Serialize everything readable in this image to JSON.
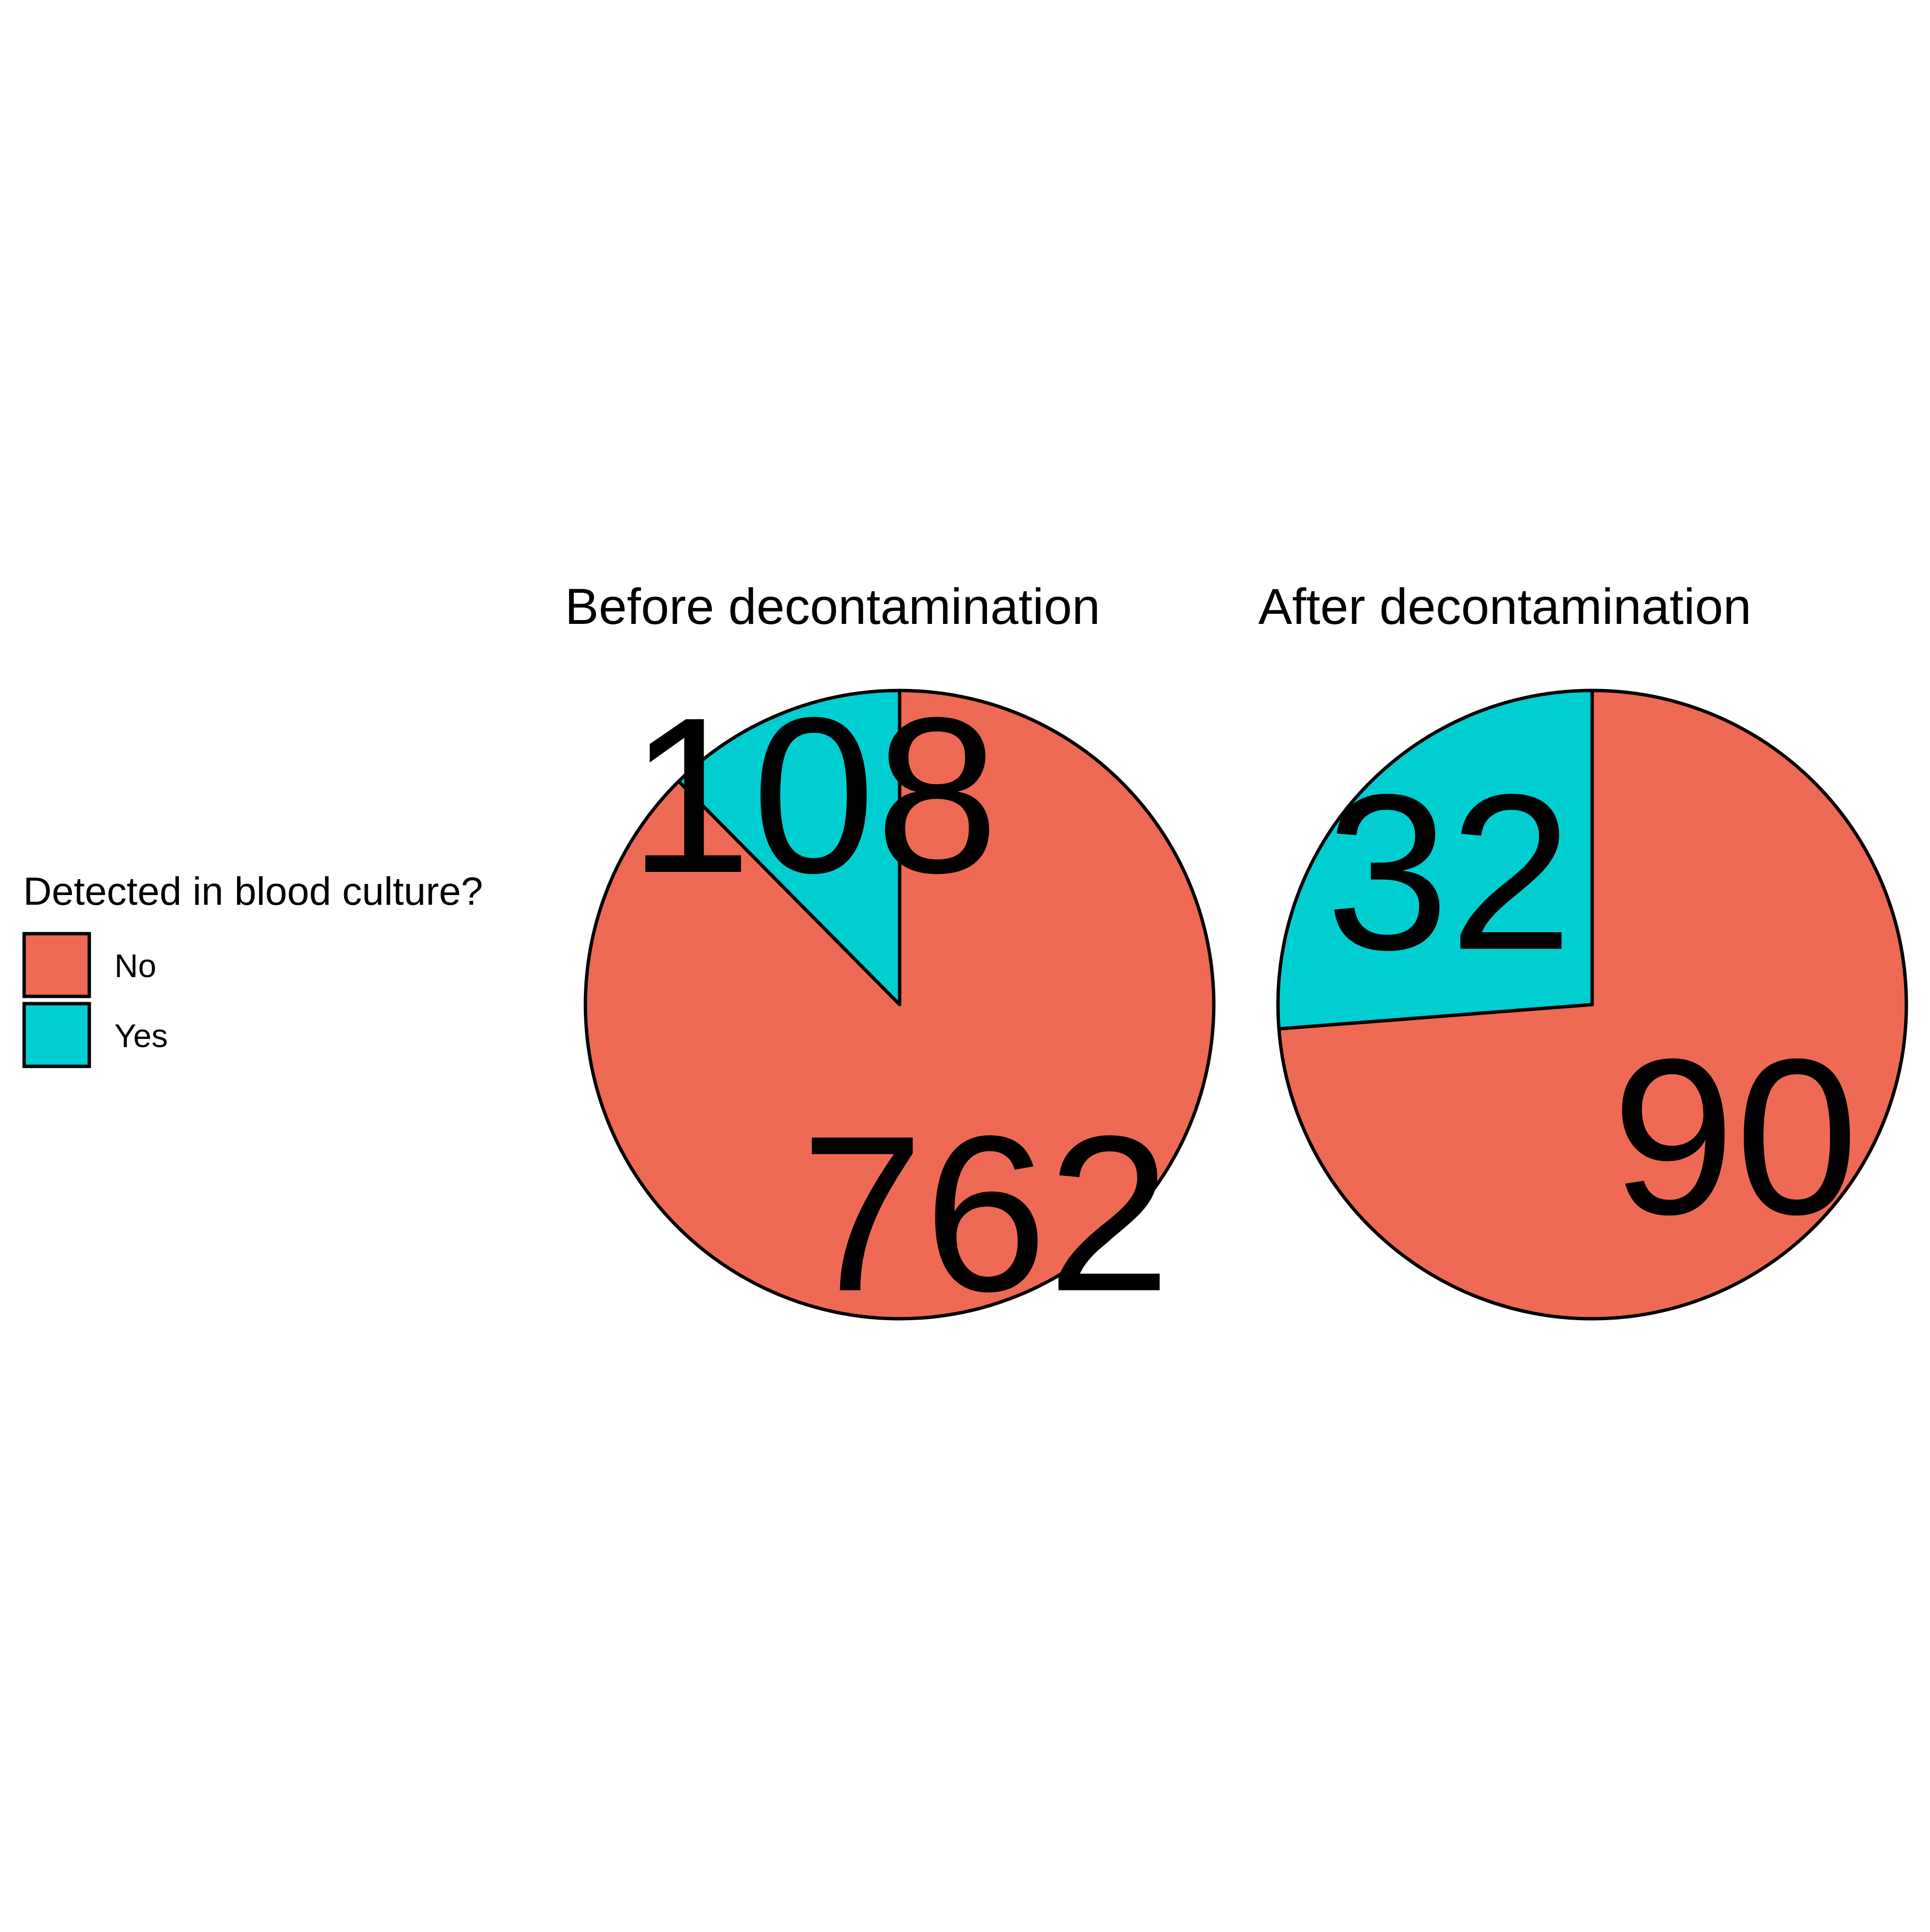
{
  "chart_data": {
    "type": "pie",
    "legend": {
      "title": "Detected in blood culture?",
      "position": "left",
      "entries": [
        {
          "label": "No",
          "color": "#EE6A54"
        },
        {
          "label": "Yes",
          "color": "#00CED1"
        }
      ]
    },
    "panels": [
      {
        "title": "Before decontamination",
        "slices": [
          {
            "label": "Yes",
            "value": 108
          },
          {
            "label": "No",
            "value": 762
          }
        ]
      },
      {
        "title": "After decontamination",
        "slices": [
          {
            "label": "Yes",
            "value": 32
          },
          {
            "label": "No",
            "value": 90
          }
        ]
      }
    ]
  }
}
